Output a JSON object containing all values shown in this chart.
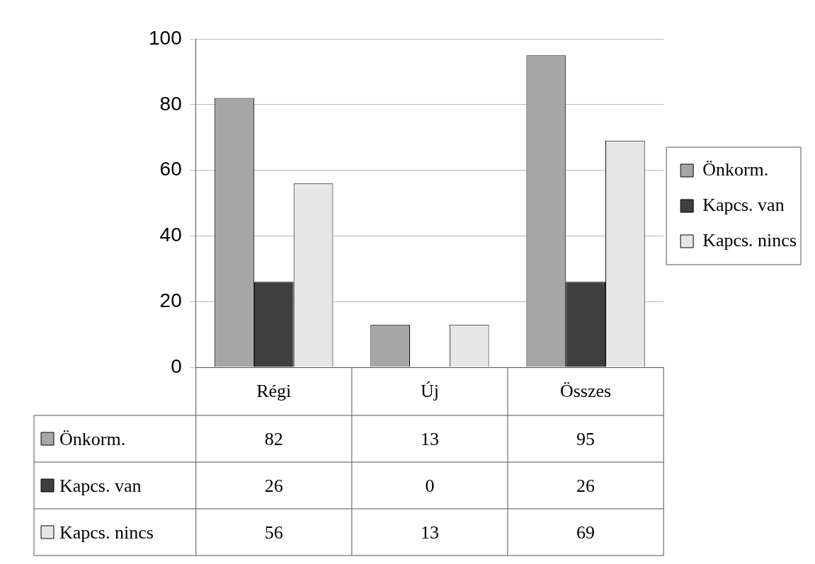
{
  "chart_data": {
    "type": "bar",
    "categories": [
      "Régi",
      "Új",
      "Összes"
    ],
    "series": [
      {
        "name": "Önkorm.",
        "color": "#a6a6a6",
        "values": [
          82,
          13,
          95
        ]
      },
      {
        "name": "Kapcs. van",
        "color": "#3f3f3f",
        "values": [
          26,
          0,
          26
        ]
      },
      {
        "name": "Kapcs. nincs",
        "color": "#e6e6e6",
        "values": [
          56,
          13,
          69
        ]
      }
    ],
    "ylim": [
      0,
      100
    ],
    "yticks": [
      0,
      20,
      40,
      60,
      80,
      100
    ],
    "grid": "y",
    "legend": "right",
    "data_labels": true
  }
}
